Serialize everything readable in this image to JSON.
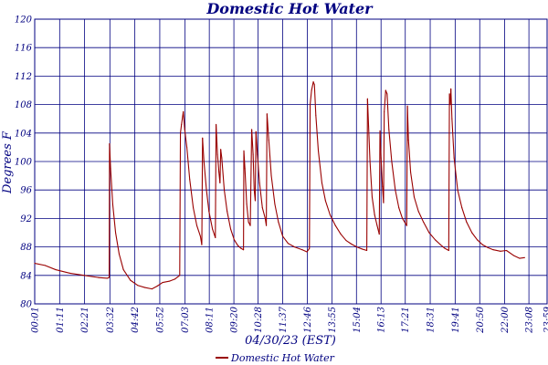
{
  "chart_data": {
    "type": "line",
    "title": "Domestic Hot Water",
    "xlabel": "04/30/23 (EST)",
    "ylabel": "Degrees F",
    "ylim": [
      80,
      120
    ],
    "yticks": [
      80,
      84,
      88,
      92,
      96,
      100,
      104,
      108,
      112,
      116,
      120
    ],
    "xlim": [
      1,
      1439
    ],
    "xticks": [
      {
        "label": "00:01",
        "minute": 1
      },
      {
        "label": "01:11",
        "minute": 71
      },
      {
        "label": "02:21",
        "minute": 141
      },
      {
        "label": "03:32",
        "minute": 212
      },
      {
        "label": "04:42",
        "minute": 282
      },
      {
        "label": "05:52",
        "minute": 352
      },
      {
        "label": "07:03",
        "minute": 423
      },
      {
        "label": "08:11",
        "minute": 491
      },
      {
        "label": "09:20",
        "minute": 560
      },
      {
        "label": "10:28",
        "minute": 628
      },
      {
        "label": "11:37",
        "minute": 697
      },
      {
        "label": "12:46",
        "minute": 766
      },
      {
        "label": "13:55",
        "minute": 835
      },
      {
        "label": "15:04",
        "minute": 904
      },
      {
        "label": "16:13",
        "minute": 973
      },
      {
        "label": "17:21",
        "minute": 1041
      },
      {
        "label": "18:31",
        "minute": 1111
      },
      {
        "label": "19:41",
        "minute": 1181
      },
      {
        "label": "20:50",
        "minute": 1250
      },
      {
        "label": "22:00",
        "minute": 1320
      },
      {
        "label": "23:08",
        "minute": 1388
      },
      {
        "label": "23:59",
        "minute": 1439
      }
    ],
    "grid": true,
    "legend": "bottom-center",
    "series": [
      {
        "name": "Domestic Hot Water",
        "color": "#990000",
        "points": [
          [
            1,
            85.7
          ],
          [
            30,
            85.4
          ],
          [
            60,
            84.8
          ],
          [
            100,
            84.3
          ],
          [
            140,
            84.0
          ],
          [
            180,
            83.7
          ],
          [
            205,
            83.6
          ],
          [
            210,
            83.7
          ],
          [
            211,
            102.5
          ],
          [
            214,
            99.0
          ],
          [
            220,
            94.0
          ],
          [
            228,
            90.0
          ],
          [
            238,
            87.0
          ],
          [
            250,
            84.8
          ],
          [
            270,
            83.3
          ],
          [
            290,
            82.6
          ],
          [
            310,
            82.3
          ],
          [
            330,
            82.1
          ],
          [
            345,
            82.5
          ],
          [
            360,
            83.0
          ],
          [
            380,
            83.2
          ],
          [
            395,
            83.5
          ],
          [
            408,
            84.0
          ],
          [
            410,
            104.0
          ],
          [
            413,
            105.2
          ],
          [
            418,
            107.0
          ],
          [
            422,
            104.5
          ],
          [
            428,
            102.0
          ],
          [
            436,
            97.5
          ],
          [
            446,
            93.5
          ],
          [
            456,
            91.0
          ],
          [
            466,
            89.5
          ],
          [
            470,
            88.3
          ],
          [
            472,
            103.3
          ],
          [
            476,
            100.0
          ],
          [
            483,
            96.0
          ],
          [
            490,
            93.0
          ],
          [
            500,
            90.5
          ],
          [
            508,
            89.3
          ],
          [
            510,
            105.2
          ],
          [
            514,
            101.0
          ],
          [
            518,
            98.5
          ],
          [
            521,
            97.0
          ],
          [
            523,
            101.7
          ],
          [
            526,
            100.5
          ],
          [
            533,
            96.0
          ],
          [
            541,
            93.0
          ],
          [
            551,
            90.5
          ],
          [
            561,
            89.0
          ],
          [
            571,
            88.2
          ],
          [
            580,
            87.8
          ],
          [
            587,
            87.6
          ],
          [
            588,
            101.5
          ],
          [
            591,
            99.0
          ],
          [
            596,
            94.0
          ],
          [
            601,
            91.5
          ],
          [
            606,
            91.0
          ],
          [
            610,
            104.5
          ],
          [
            614,
            101.0
          ],
          [
            617,
            96.0
          ],
          [
            620,
            94.5
          ],
          [
            622,
            104.2
          ],
          [
            626,
            101.0
          ],
          [
            632,
            97.0
          ],
          [
            640,
            93.5
          ],
          [
            648,
            92.0
          ],
          [
            651,
            91.0
          ],
          [
            653,
            106.7
          ],
          [
            658,
            103.0
          ],
          [
            665,
            98.0
          ],
          [
            675,
            94.0
          ],
          [
            685,
            91.5
          ],
          [
            697,
            89.5
          ],
          [
            712,
            88.5
          ],
          [
            730,
            88.0
          ],
          [
            752,
            87.6
          ],
          [
            765,
            87.3
          ],
          [
            772,
            87.8
          ],
          [
            774,
            108.0
          ],
          [
            778,
            110.0
          ],
          [
            783,
            111.2
          ],
          [
            786,
            110.8
          ],
          [
            790,
            106.5
          ],
          [
            797,
            101.5
          ],
          [
            807,
            97.0
          ],
          [
            817,
            94.5
          ],
          [
            830,
            92.5
          ],
          [
            845,
            91.0
          ],
          [
            860,
            89.8
          ],
          [
            875,
            88.9
          ],
          [
            890,
            88.4
          ],
          [
            905,
            88.0
          ],
          [
            920,
            87.7
          ],
          [
            933,
            87.5
          ],
          [
            935,
            108.8
          ],
          [
            938,
            105.0
          ],
          [
            942,
            100.0
          ],
          [
            948,
            95.0
          ],
          [
            955,
            92.5
          ],
          [
            962,
            91.0
          ],
          [
            968,
            89.8
          ],
          [
            970,
            104.3
          ],
          [
            973,
            100.5
          ],
          [
            977,
            96.5
          ],
          [
            980,
            94.2
          ],
          [
            982,
            107.0
          ],
          [
            986,
            110.0
          ],
          [
            990,
            109.5
          ],
          [
            995,
            104.5
          ],
          [
            1003,
            100.0
          ],
          [
            1013,
            96.0
          ],
          [
            1023,
            93.5
          ],
          [
            1033,
            92.0
          ],
          [
            1045,
            91.0
          ],
          [
            1047,
            107.8
          ],
          [
            1050,
            103.0
          ],
          [
            1056,
            98.5
          ],
          [
            1066,
            95.0
          ],
          [
            1078,
            93.0
          ],
          [
            1092,
            91.5
          ],
          [
            1108,
            90.0
          ],
          [
            1125,
            89.0
          ],
          [
            1140,
            88.3
          ],
          [
            1152,
            87.8
          ],
          [
            1163,
            87.5
          ],
          [
            1165,
            109.5
          ],
          [
            1167,
            108.0
          ],
          [
            1169,
            110.2
          ],
          [
            1172,
            106.0
          ],
          [
            1178,
            100.5
          ],
          [
            1188,
            96.0
          ],
          [
            1200,
            93.5
          ],
          [
            1213,
            91.5
          ],
          [
            1228,
            90.0
          ],
          [
            1243,
            89.0
          ],
          [
            1258,
            88.3
          ],
          [
            1273,
            87.9
          ],
          [
            1288,
            87.6
          ],
          [
            1308,
            87.4
          ],
          [
            1325,
            87.5
          ],
          [
            1345,
            86.8
          ],
          [
            1362,
            86.4
          ],
          [
            1376,
            86.5
          ]
        ]
      }
    ]
  }
}
